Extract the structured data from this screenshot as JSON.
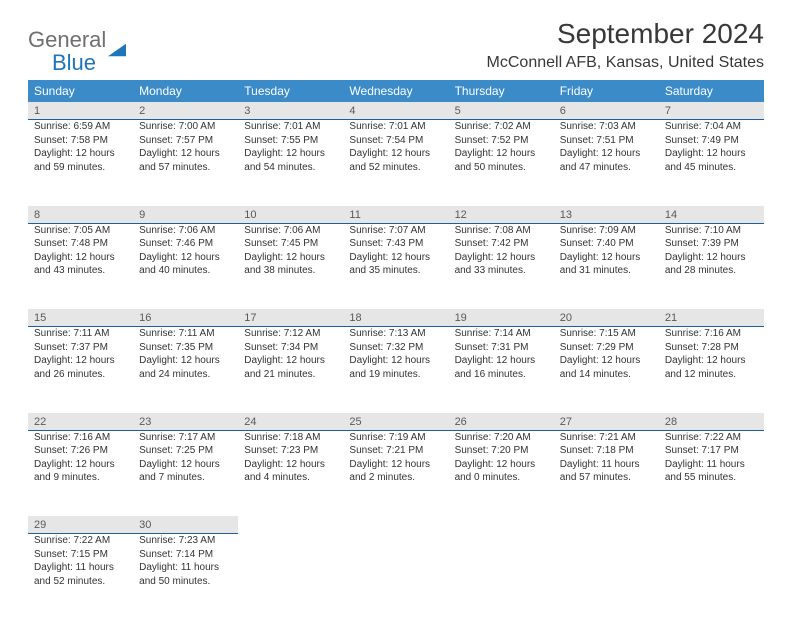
{
  "brand": {
    "word1": "General",
    "word2": "Blue"
  },
  "title": "September 2024",
  "location": "McConnell AFB, Kansas, United States",
  "colors": {
    "header_bg": "#3b8bc9",
    "daynum_bg": "#e6e6e6",
    "daynum_border": "#1d5f99",
    "text": "#333333"
  },
  "weekdays": [
    "Sunday",
    "Monday",
    "Tuesday",
    "Wednesday",
    "Thursday",
    "Friday",
    "Saturday"
  ],
  "weeks": [
    [
      {
        "n": "1",
        "sr": "Sunrise: 6:59 AM",
        "ss": "Sunset: 7:58 PM",
        "d1": "Daylight: 12 hours",
        "d2": "and 59 minutes."
      },
      {
        "n": "2",
        "sr": "Sunrise: 7:00 AM",
        "ss": "Sunset: 7:57 PM",
        "d1": "Daylight: 12 hours",
        "d2": "and 57 minutes."
      },
      {
        "n": "3",
        "sr": "Sunrise: 7:01 AM",
        "ss": "Sunset: 7:55 PM",
        "d1": "Daylight: 12 hours",
        "d2": "and 54 minutes."
      },
      {
        "n": "4",
        "sr": "Sunrise: 7:01 AM",
        "ss": "Sunset: 7:54 PM",
        "d1": "Daylight: 12 hours",
        "d2": "and 52 minutes."
      },
      {
        "n": "5",
        "sr": "Sunrise: 7:02 AM",
        "ss": "Sunset: 7:52 PM",
        "d1": "Daylight: 12 hours",
        "d2": "and 50 minutes."
      },
      {
        "n": "6",
        "sr": "Sunrise: 7:03 AM",
        "ss": "Sunset: 7:51 PM",
        "d1": "Daylight: 12 hours",
        "d2": "and 47 minutes."
      },
      {
        "n": "7",
        "sr": "Sunrise: 7:04 AM",
        "ss": "Sunset: 7:49 PM",
        "d1": "Daylight: 12 hours",
        "d2": "and 45 minutes."
      }
    ],
    [
      {
        "n": "8",
        "sr": "Sunrise: 7:05 AM",
        "ss": "Sunset: 7:48 PM",
        "d1": "Daylight: 12 hours",
        "d2": "and 43 minutes."
      },
      {
        "n": "9",
        "sr": "Sunrise: 7:06 AM",
        "ss": "Sunset: 7:46 PM",
        "d1": "Daylight: 12 hours",
        "d2": "and 40 minutes."
      },
      {
        "n": "10",
        "sr": "Sunrise: 7:06 AM",
        "ss": "Sunset: 7:45 PM",
        "d1": "Daylight: 12 hours",
        "d2": "and 38 minutes."
      },
      {
        "n": "11",
        "sr": "Sunrise: 7:07 AM",
        "ss": "Sunset: 7:43 PM",
        "d1": "Daylight: 12 hours",
        "d2": "and 35 minutes."
      },
      {
        "n": "12",
        "sr": "Sunrise: 7:08 AM",
        "ss": "Sunset: 7:42 PM",
        "d1": "Daylight: 12 hours",
        "d2": "and 33 minutes."
      },
      {
        "n": "13",
        "sr": "Sunrise: 7:09 AM",
        "ss": "Sunset: 7:40 PM",
        "d1": "Daylight: 12 hours",
        "d2": "and 31 minutes."
      },
      {
        "n": "14",
        "sr": "Sunrise: 7:10 AM",
        "ss": "Sunset: 7:39 PM",
        "d1": "Daylight: 12 hours",
        "d2": "and 28 minutes."
      }
    ],
    [
      {
        "n": "15",
        "sr": "Sunrise: 7:11 AM",
        "ss": "Sunset: 7:37 PM",
        "d1": "Daylight: 12 hours",
        "d2": "and 26 minutes."
      },
      {
        "n": "16",
        "sr": "Sunrise: 7:11 AM",
        "ss": "Sunset: 7:35 PM",
        "d1": "Daylight: 12 hours",
        "d2": "and 24 minutes."
      },
      {
        "n": "17",
        "sr": "Sunrise: 7:12 AM",
        "ss": "Sunset: 7:34 PM",
        "d1": "Daylight: 12 hours",
        "d2": "and 21 minutes."
      },
      {
        "n": "18",
        "sr": "Sunrise: 7:13 AM",
        "ss": "Sunset: 7:32 PM",
        "d1": "Daylight: 12 hours",
        "d2": "and 19 minutes."
      },
      {
        "n": "19",
        "sr": "Sunrise: 7:14 AM",
        "ss": "Sunset: 7:31 PM",
        "d1": "Daylight: 12 hours",
        "d2": "and 16 minutes."
      },
      {
        "n": "20",
        "sr": "Sunrise: 7:15 AM",
        "ss": "Sunset: 7:29 PM",
        "d1": "Daylight: 12 hours",
        "d2": "and 14 minutes."
      },
      {
        "n": "21",
        "sr": "Sunrise: 7:16 AM",
        "ss": "Sunset: 7:28 PM",
        "d1": "Daylight: 12 hours",
        "d2": "and 12 minutes."
      }
    ],
    [
      {
        "n": "22",
        "sr": "Sunrise: 7:16 AM",
        "ss": "Sunset: 7:26 PM",
        "d1": "Daylight: 12 hours",
        "d2": "and 9 minutes."
      },
      {
        "n": "23",
        "sr": "Sunrise: 7:17 AM",
        "ss": "Sunset: 7:25 PM",
        "d1": "Daylight: 12 hours",
        "d2": "and 7 minutes."
      },
      {
        "n": "24",
        "sr": "Sunrise: 7:18 AM",
        "ss": "Sunset: 7:23 PM",
        "d1": "Daylight: 12 hours",
        "d2": "and 4 minutes."
      },
      {
        "n": "25",
        "sr": "Sunrise: 7:19 AM",
        "ss": "Sunset: 7:21 PM",
        "d1": "Daylight: 12 hours",
        "d2": "and 2 minutes."
      },
      {
        "n": "26",
        "sr": "Sunrise: 7:20 AM",
        "ss": "Sunset: 7:20 PM",
        "d1": "Daylight: 12 hours",
        "d2": "and 0 minutes."
      },
      {
        "n": "27",
        "sr": "Sunrise: 7:21 AM",
        "ss": "Sunset: 7:18 PM",
        "d1": "Daylight: 11 hours",
        "d2": "and 57 minutes."
      },
      {
        "n": "28",
        "sr": "Sunrise: 7:22 AM",
        "ss": "Sunset: 7:17 PM",
        "d1": "Daylight: 11 hours",
        "d2": "and 55 minutes."
      }
    ],
    [
      {
        "n": "29",
        "sr": "Sunrise: 7:22 AM",
        "ss": "Sunset: 7:15 PM",
        "d1": "Daylight: 11 hours",
        "d2": "and 52 minutes."
      },
      {
        "n": "30",
        "sr": "Sunrise: 7:23 AM",
        "ss": "Sunset: 7:14 PM",
        "d1": "Daylight: 11 hours",
        "d2": "and 50 minutes."
      },
      null,
      null,
      null,
      null,
      null
    ]
  ]
}
